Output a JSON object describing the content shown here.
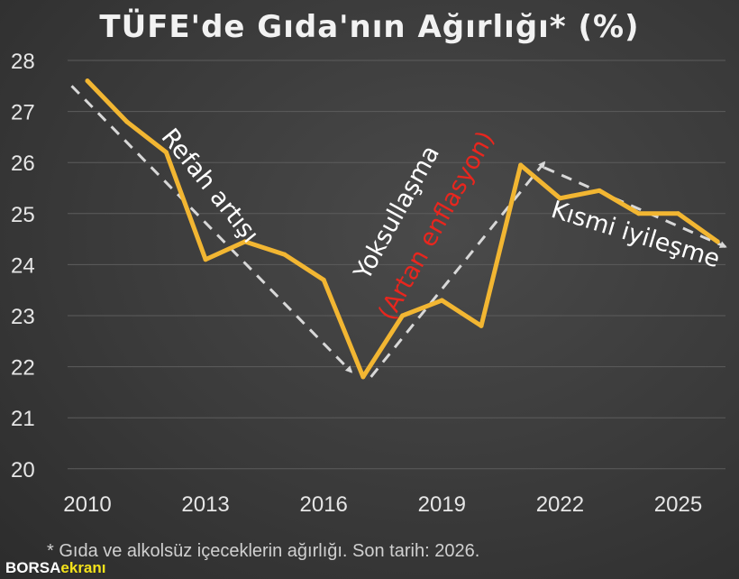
{
  "chart_data": {
    "type": "line",
    "title": "TÜFE'de Gıda'nın Ağırlığı* (%)",
    "x": [
      2010,
      2011,
      2012,
      2013,
      2014,
      2015,
      2016,
      2017,
      2018,
      2019,
      2020,
      2021,
      2022,
      2023,
      2024,
      2025,
      2026
    ],
    "series": [
      {
        "values": [
          27.6,
          26.8,
          26.2,
          24.1,
          24.45,
          24.2,
          23.7,
          21.8,
          23.0,
          23.3,
          22.8,
          25.95,
          25.3,
          25.45,
          25.0,
          25.0,
          24.45
        ],
        "color": "#f2b632"
      }
    ],
    "ylim": [
      20,
      28
    ],
    "yticks": [
      20,
      21,
      22,
      23,
      24,
      25,
      26,
      27,
      28
    ],
    "xticks": [
      2010,
      2013,
      2016,
      2019,
      2022,
      2025
    ],
    "grid": true,
    "annotations": [
      {
        "text": "Refah artışı",
        "color": "#ffffff"
      },
      {
        "text": "Yoksullaşma",
        "color": "#ffffff"
      },
      {
        "text": "(Artan enflasyon)",
        "color": "#e8261e"
      },
      {
        "text": "Kısmi iyileşme",
        "color": "#ffffff"
      }
    ],
    "trend_arrows": [
      {
        "from": [
          2009.6,
          27.5
        ],
        "to": [
          2016.7,
          21.9
        ]
      },
      {
        "from": [
          2017.2,
          21.8
        ],
        "to": [
          2021.6,
          26.0
        ]
      },
      {
        "from": [
          2021.6,
          25.9
        ],
        "to": [
          2026.2,
          24.35
        ]
      }
    ],
    "footnote": "* Gıda ve alkolsüz içeceklerin ağırlığı. Son tarih: 2026."
  },
  "logo": {
    "part1": "BORSA",
    "part2": "ekranı"
  }
}
